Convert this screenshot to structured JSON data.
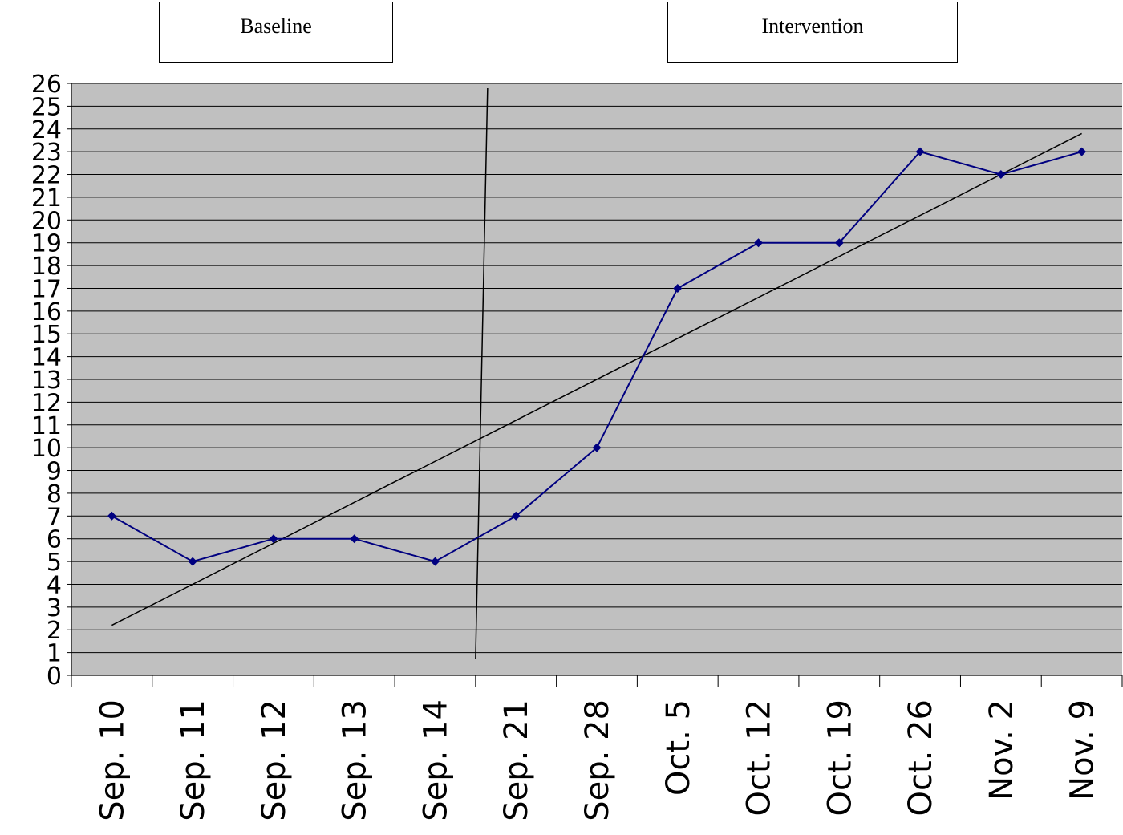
{
  "phase_labels": {
    "baseline": "Baseline",
    "intervention": "Intervention"
  },
  "colors": {
    "plot_background": "#c0c0c0",
    "series_line": "#000080",
    "gridline": "#000000",
    "trend_line": "#000000"
  },
  "chart_data": {
    "type": "line",
    "categories": [
      "Sep. 10",
      "Sep. 11",
      "Sep. 12",
      "Sep. 13",
      "Sep. 14",
      "Sep. 21",
      "Sep. 28",
      "Oct. 5",
      "Oct. 12",
      "Oct. 19",
      "Oct. 26",
      "Nov. 2",
      "Nov. 9"
    ],
    "series": [
      {
        "values": [
          7,
          5,
          6,
          6,
          5,
          7,
          10,
          17,
          19,
          19,
          23,
          22,
          23
        ],
        "marker": "diamond"
      }
    ],
    "trend_line": {
      "start": 2.2,
      "end": 23.8
    },
    "phase_change_after": "Sep. 14",
    "ylim": [
      0,
      26
    ],
    "yticks": [
      0,
      1,
      2,
      3,
      4,
      5,
      6,
      7,
      8,
      9,
      10,
      11,
      12,
      13,
      14,
      15,
      16,
      17,
      18,
      19,
      20,
      21,
      22,
      23,
      24,
      25,
      26
    ],
    "grid": true,
    "legend": "none",
    "title": "",
    "xlabel": "",
    "ylabel": ""
  }
}
